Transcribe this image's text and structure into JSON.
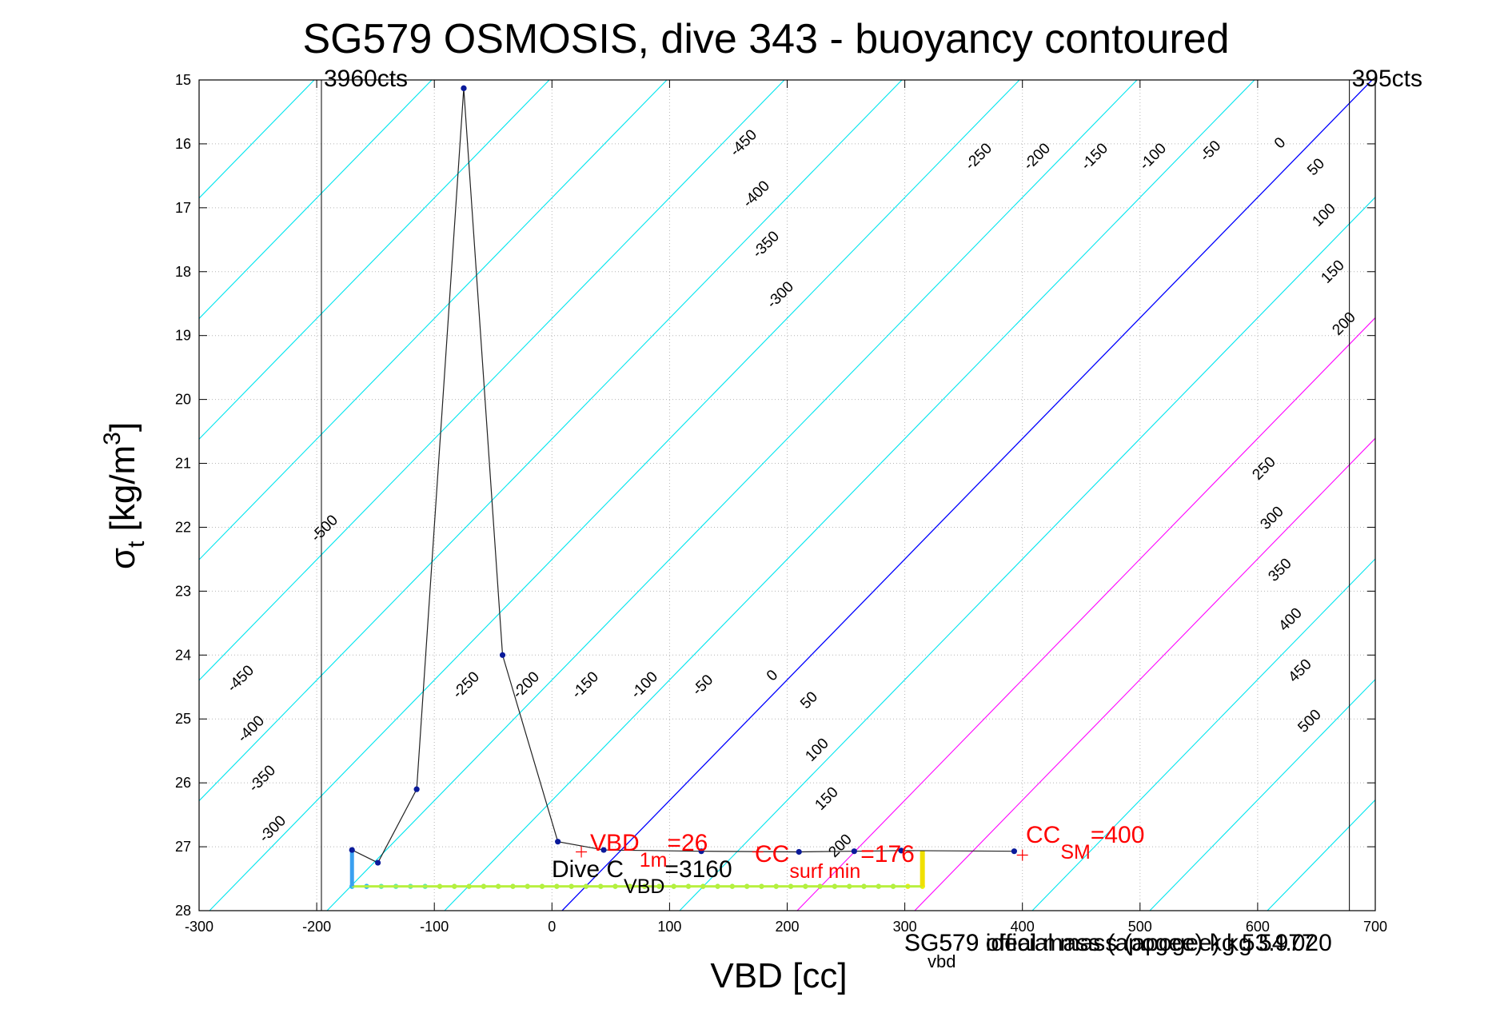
{
  "chart_data": {
    "type": "line",
    "title": "SG579 OSMOSIS, dive 343 - buoyancy contoured",
    "xlabel": "VBD [cc]",
    "ylabel_main": "σ",
    "ylabel_sub": "t",
    "ylabel_unit_pre": " [kg/m",
    "ylabel_unit_sup": "3",
    "ylabel_unit_post": "]",
    "xlim": [
      -300,
      700
    ],
    "ylim": [
      15,
      28
    ],
    "y_reversed": true,
    "grid": true,
    "x_ticks": [
      "-300",
      "-200",
      "-100",
      "0",
      "100",
      "200",
      "300",
      "400",
      "500",
      "600",
      "700"
    ],
    "y_ticks": [
      "15",
      "16",
      "17",
      "18",
      "19",
      "20",
      "21",
      "22",
      "23",
      "24",
      "25",
      "26",
      "27",
      "28"
    ],
    "vlines": [
      {
        "x": -196,
        "label": "3960cts"
      },
      {
        "x": 678,
        "label": "395cts"
      }
    ],
    "contours": {
      "negative_values": [
        -500,
        -450,
        -400,
        -350,
        -300,
        -250,
        -200,
        -150,
        -100,
        -50
      ],
      "positive_values": [
        50,
        100,
        150,
        200,
        250,
        300,
        350,
        400,
        450,
        500
      ],
      "zero_value": 0,
      "upper_labels": [
        "-450",
        "-400",
        "-350",
        "-300",
        "-250",
        "-200",
        "-150",
        "-100",
        "-50",
        "0",
        "50",
        "100",
        "150",
        "200"
      ],
      "middle_labels": [
        "-500",
        "250",
        "300",
        "350",
        "400",
        "450",
        "500"
      ],
      "lower_labels": [
        "-450",
        "-400",
        "-350",
        "-300",
        "-250",
        "-200",
        "-150",
        "-100",
        "-50",
        "0",
        "50",
        "100",
        "150",
        "200"
      ],
      "colors": {
        "negative": "#00e5ee",
        "zero": "#0000ff",
        "positive": "#ff00ff",
        "positive_far": "#00e5ee"
      }
    },
    "series": [
      {
        "x": [
          -75,
          -42,
          5,
          44,
          127,
          210,
          257,
          297,
          393
        ],
        "y": [
          15.13,
          24.0,
          26.92,
          27.05,
          27.07,
          27.08,
          27.07,
          27.06,
          27.07
        ]
      },
      {
        "x": [
          -170,
          -148,
          -115,
          -75
        ],
        "y": [
          27.05,
          27.25,
          26.1,
          15.13
        ]
      }
    ],
    "profile_points": {
      "x_start": -170,
      "x_end": 315,
      "y": 27.62,
      "count": 40
    },
    "markers": [
      {
        "x": 25,
        "y": 27.08
      },
      {
        "x": 175,
        "y": 27.08
      },
      {
        "x": 400,
        "y": 27.13
      }
    ],
    "annotations": {
      "vbd1m": {
        "main": "VBD",
        "sub": "1m",
        "post": "=26",
        "color": "#ff0000"
      },
      "cc_surf": {
        "main": "CC",
        "sub": "surf min",
        "post": "=176",
        "color": "#ff0000"
      },
      "cc_sm": {
        "main": "CC",
        "sub": "SM",
        "post": "=400",
        "color": "#ff0000"
      },
      "dive_c": {
        "main": "Dive C",
        "sub": "VBD",
        "post": "=3160",
        "color": "#000000"
      },
      "footer_a": "SG579 official mass (apogee) kg 54.020",
      "footer_b": "SG579 ideal mass (apogee) kg 53.977",
      "footer_sub": "vbd"
    }
  }
}
